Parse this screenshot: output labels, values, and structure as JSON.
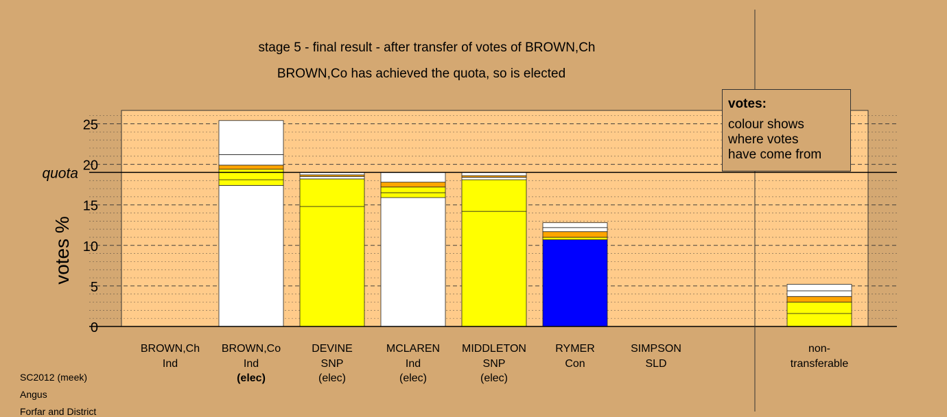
{
  "chart_data": {
    "type": "bar",
    "title": "stage 5 - final result - after transfer of votes of BROWN,Ch",
    "subtitle": "BROWN,Co has achieved the quota, so is elected",
    "ylabel": "votes %",
    "quota_label": "quota",
    "quota": 19.0,
    "ylim": [
      0,
      26.5
    ],
    "yticks": [
      0,
      5,
      10,
      15,
      20,
      25
    ],
    "candidates": [
      {
        "name": "BROWN,Ch",
        "party": "Ind",
        "status": "",
        "status_bold": false,
        "segments": []
      },
      {
        "name": "BROWN,Co",
        "party": "Ind",
        "status": "(elec)",
        "status_bold": true,
        "segments": [
          {
            "value": 17.4,
            "color": "#FFFFFF"
          },
          {
            "value": 0.7,
            "color": "#FFFF00"
          },
          {
            "value": 0.9,
            "color": "#FFFF00"
          },
          {
            "value": 0.4,
            "color": "#FFFF00"
          },
          {
            "value": 0.5,
            "color": "#FFA500"
          },
          {
            "value": 1.3,
            "color": "#FFFFFF"
          },
          {
            "value": 4.2,
            "color": "#FFFFFF"
          }
        ]
      },
      {
        "name": "DEVINE",
        "party": "SNP",
        "status": "(elec)",
        "status_bold": false,
        "segments": [
          {
            "value": 14.8,
            "color": "#FFFF00"
          },
          {
            "value": 3.4,
            "color": "#FFFF00"
          },
          {
            "value": 0.3,
            "color": "#FFFFFF"
          },
          {
            "value": 0.2,
            "color": "#FFA500"
          },
          {
            "value": 0.3,
            "color": "#FFFFFF"
          }
        ]
      },
      {
        "name": "MCLAREN",
        "party": "Ind",
        "status": "(elec)",
        "status_bold": false,
        "segments": [
          {
            "value": 15.9,
            "color": "#FFFFFF"
          },
          {
            "value": 0.6,
            "color": "#FFFF00"
          },
          {
            "value": 0.7,
            "color": "#FFFF00"
          },
          {
            "value": 0.6,
            "color": "#FFA500"
          },
          {
            "value": 1.2,
            "color": "#FFFFFF"
          }
        ]
      },
      {
        "name": "MIDDLETON",
        "party": "SNP",
        "status": "(elec)",
        "status_bold": false,
        "segments": [
          {
            "value": 14.2,
            "color": "#FFFF00"
          },
          {
            "value": 3.9,
            "color": "#FFFF00"
          },
          {
            "value": 0.3,
            "color": "#FFFFFF"
          },
          {
            "value": 0.2,
            "color": "#FFA500"
          },
          {
            "value": 0.4,
            "color": "#FFFFFF"
          }
        ]
      },
      {
        "name": "RYMER",
        "party": "Con",
        "status": "",
        "status_bold": false,
        "segments": [
          {
            "value": 10.7,
            "color": "#0000FF"
          },
          {
            "value": 0.3,
            "color": "#FFFF00"
          },
          {
            "value": 0.7,
            "color": "#FFA500"
          },
          {
            "value": 0.5,
            "color": "#FFFFFF"
          },
          {
            "value": 0.6,
            "color": "#FFFFFF"
          }
        ]
      },
      {
        "name": "SIMPSON",
        "party": "SLD",
        "status": "",
        "status_bold": false,
        "segments": []
      }
    ],
    "nontransferable": {
      "label_line1": "non-",
      "label_line2": "transferable",
      "segments": [
        {
          "value": 1.6,
          "color": "#FFFF00"
        },
        {
          "value": 1.4,
          "color": "#FFFF00"
        },
        {
          "value": 0.7,
          "color": "#FFA500"
        },
        {
          "value": 0.7,
          "color": "#FFFFFF"
        },
        {
          "value": 0.8,
          "color": "#FFFFFF"
        }
      ]
    },
    "legend": {
      "title": "votes:",
      "line1": "colour shows",
      "line2": "where votes",
      "line3": "have come from"
    },
    "grid": true
  },
  "footer": {
    "line1": "SC2012 (meek)",
    "line2": "Angus",
    "line3": "Forfar and District"
  },
  "colors": {
    "background": "#D4A872",
    "plot_band": "#FFCB8A"
  }
}
